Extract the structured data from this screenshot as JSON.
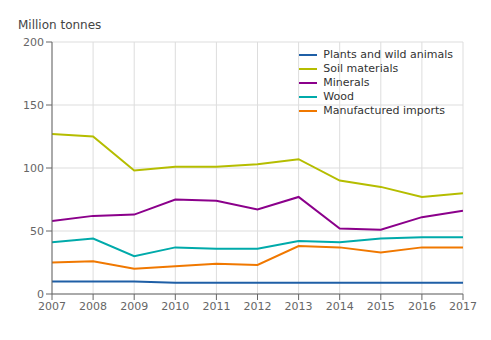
{
  "chart_data": {
    "type": "line",
    "ylabel": "Million tonnes",
    "x": [
      2007,
      2008,
      2009,
      2010,
      2011,
      2012,
      2013,
      2014,
      2015,
      2016,
      2017
    ],
    "series": [
      {
        "name": "Plants and wild animals",
        "color": "#1f5fa6",
        "values": [
          10,
          10,
          10,
          9,
          9,
          9,
          9,
          9,
          9,
          9,
          9
        ]
      },
      {
        "name": "Soil materials",
        "color": "#b5bd00",
        "values": [
          127,
          125,
          98,
          101,
          101,
          103,
          107,
          90,
          85,
          77,
          80
        ]
      },
      {
        "name": "Minerals",
        "color": "#8b008b",
        "values": [
          58,
          62,
          63,
          75,
          74,
          67,
          77,
          52,
          51,
          61,
          66
        ]
      },
      {
        "name": "Wood",
        "color": "#00aaaa",
        "values": [
          41,
          44,
          30,
          37,
          36,
          36,
          42,
          41,
          44,
          45,
          45
        ]
      },
      {
        "name": "Manufactured imports",
        "color": "#f07800",
        "values": [
          25,
          26,
          20,
          22,
          24,
          23,
          38,
          37,
          33,
          37,
          37
        ]
      }
    ],
    "xlim": [
      2007,
      2017
    ],
    "xticks": [
      2007,
      2008,
      2009,
      2010,
      2011,
      2012,
      2013,
      2014,
      2015,
      2016,
      2017
    ],
    "ylim": [
      0,
      200
    ],
    "yticks": [
      0,
      50,
      100,
      150,
      200
    ],
    "grid": true,
    "legend": "upper right"
  }
}
